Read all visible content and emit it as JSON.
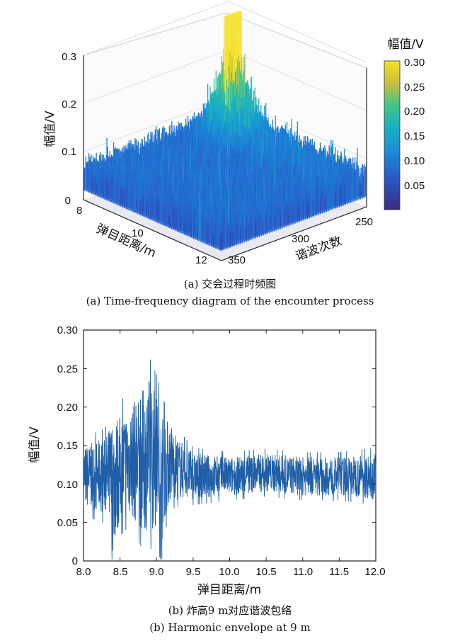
{
  "chart_data": [
    {
      "type": "3d-surface",
      "zlabel": "幅值/V",
      "xlabel": "弹目距离/m",
      "ylabel": "谐波次数",
      "z_ticks": [
        "0",
        "0.1",
        "0.2",
        "0.3"
      ],
      "x_ticks": [
        "8",
        "10",
        "12"
      ],
      "y_ticks": [
        "250",
        "300",
        "350"
      ],
      "zlim": [
        0,
        0.35
      ],
      "xlim": [
        8,
        12
      ],
      "ylim": [
        240,
        360
      ],
      "colorbar": {
        "title": "幅值/V",
        "ticks": [
          "0.30",
          "0.25",
          "0.20",
          "0.15",
          "0.10",
          "0.05"
        ],
        "range": [
          0.0,
          0.3
        ]
      },
      "peak": {
        "x": 9.0,
        "harmonic": 265,
        "value": 0.33
      },
      "caption_cn": "(a) 交会过程时频图",
      "caption_en": "(a) Time-frequency diagram of the encounter process"
    },
    {
      "type": "line",
      "xlabel": "弹目距离/m",
      "ylabel": "幅值/V",
      "xlim": [
        8.0,
        12.0
      ],
      "ylim": [
        0,
        0.3
      ],
      "x_ticks": [
        "8.0",
        "8.5",
        "9.0",
        "9.5",
        "10.0",
        "10.5",
        "11.0",
        "11.5",
        "12.0"
      ],
      "y_ticks": [
        "0",
        "0.05",
        "0.10",
        "0.15",
        "0.20",
        "0.25",
        "0.30"
      ],
      "series_color": "#1f5fa8",
      "envelope": {
        "x": [
          8.0,
          8.3,
          8.4,
          8.5,
          8.6,
          8.8,
          8.9,
          9.0,
          9.05,
          9.1,
          9.2,
          9.3,
          9.5,
          10.0,
          10.5,
          11.0,
          11.5,
          12.0
        ],
        "center": [
          0.11,
          0.11,
          0.1,
          0.12,
          0.13,
          0.13,
          0.14,
          0.13,
          0.1,
          0.12,
          0.13,
          0.12,
          0.11,
          0.11,
          0.115,
          0.11,
          0.11,
          0.11
        ],
        "spread": [
          0.04,
          0.05,
          0.09,
          0.07,
          0.07,
          0.09,
          0.1,
          0.09,
          0.1,
          0.07,
          0.05,
          0.04,
          0.03,
          0.025,
          0.025,
          0.025,
          0.025,
          0.03
        ]
      },
      "caption_cn": "(b) 炸高9 m对应谐波包络",
      "caption_en": "(b) Harmonic envelope at 9 m"
    }
  ]
}
